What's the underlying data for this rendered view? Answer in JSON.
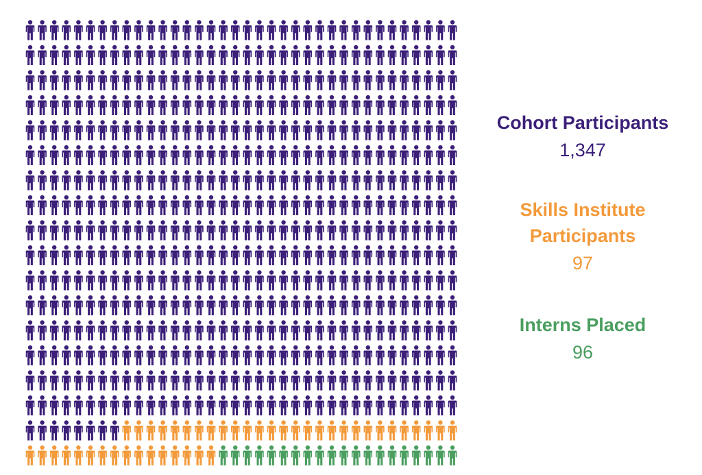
{
  "chart_data": {
    "type": "pictograph",
    "series": [
      {
        "name": "Cohort Participants",
        "value": "1,347",
        "color": "#3b1f78"
      },
      {
        "name": "Skills Institute Participants",
        "value": "97",
        "color": "#f39a3b"
      },
      {
        "name": "Interns Placed",
        "value": "96",
        "color": "#4a9e5f"
      }
    ],
    "icon": "person-icon",
    "columns": 36,
    "rows": 18,
    "units_per_icon": null,
    "icon_counts": {
      "cohort": 584,
      "skills": 44,
      "interns": 20
    }
  }
}
